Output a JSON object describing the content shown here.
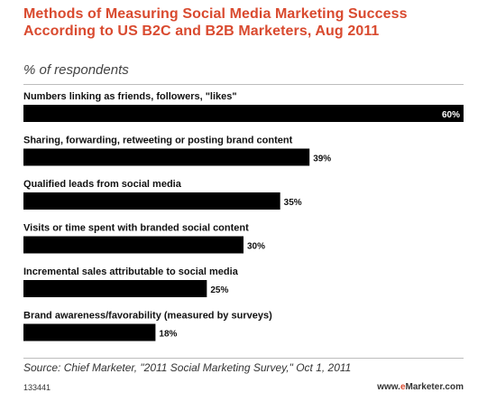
{
  "chart_data": {
    "type": "bar",
    "orientation": "horizontal",
    "title": "Methods of Measuring Social Media Marketing Success According to US B2C and B2B Marketers, Aug 2011",
    "subtitle": "% of respondents",
    "categories": [
      "Numbers linking as friends, followers, \"likes\"",
      "Sharing, forwarding, retweeting or posting brand content",
      "Qualified leads from social media",
      "Visits or time spent with branded social content",
      "Incremental sales attributable to social media",
      "Brand awareness/favorability (measured by surveys)"
    ],
    "values": [
      60,
      39,
      35,
      30,
      25,
      18
    ],
    "value_labels": [
      "60%",
      "39%",
      "35%",
      "30%",
      "25%",
      "18%"
    ],
    "xlim": [
      0,
      60
    ],
    "grid": false,
    "legend": "none",
    "bar_color": "#000000"
  },
  "source": "Source: Chief Marketer, \"2011 Social Marketing Survey,\" Oct 1, 2011",
  "footer": {
    "chart_id": "133441",
    "brand_prefix": "www.",
    "brand_e": "e",
    "brand_suffix": "Marketer.com"
  },
  "colors": {
    "title": "#d94a2f",
    "bar": "#000000",
    "text": "#111111"
  }
}
